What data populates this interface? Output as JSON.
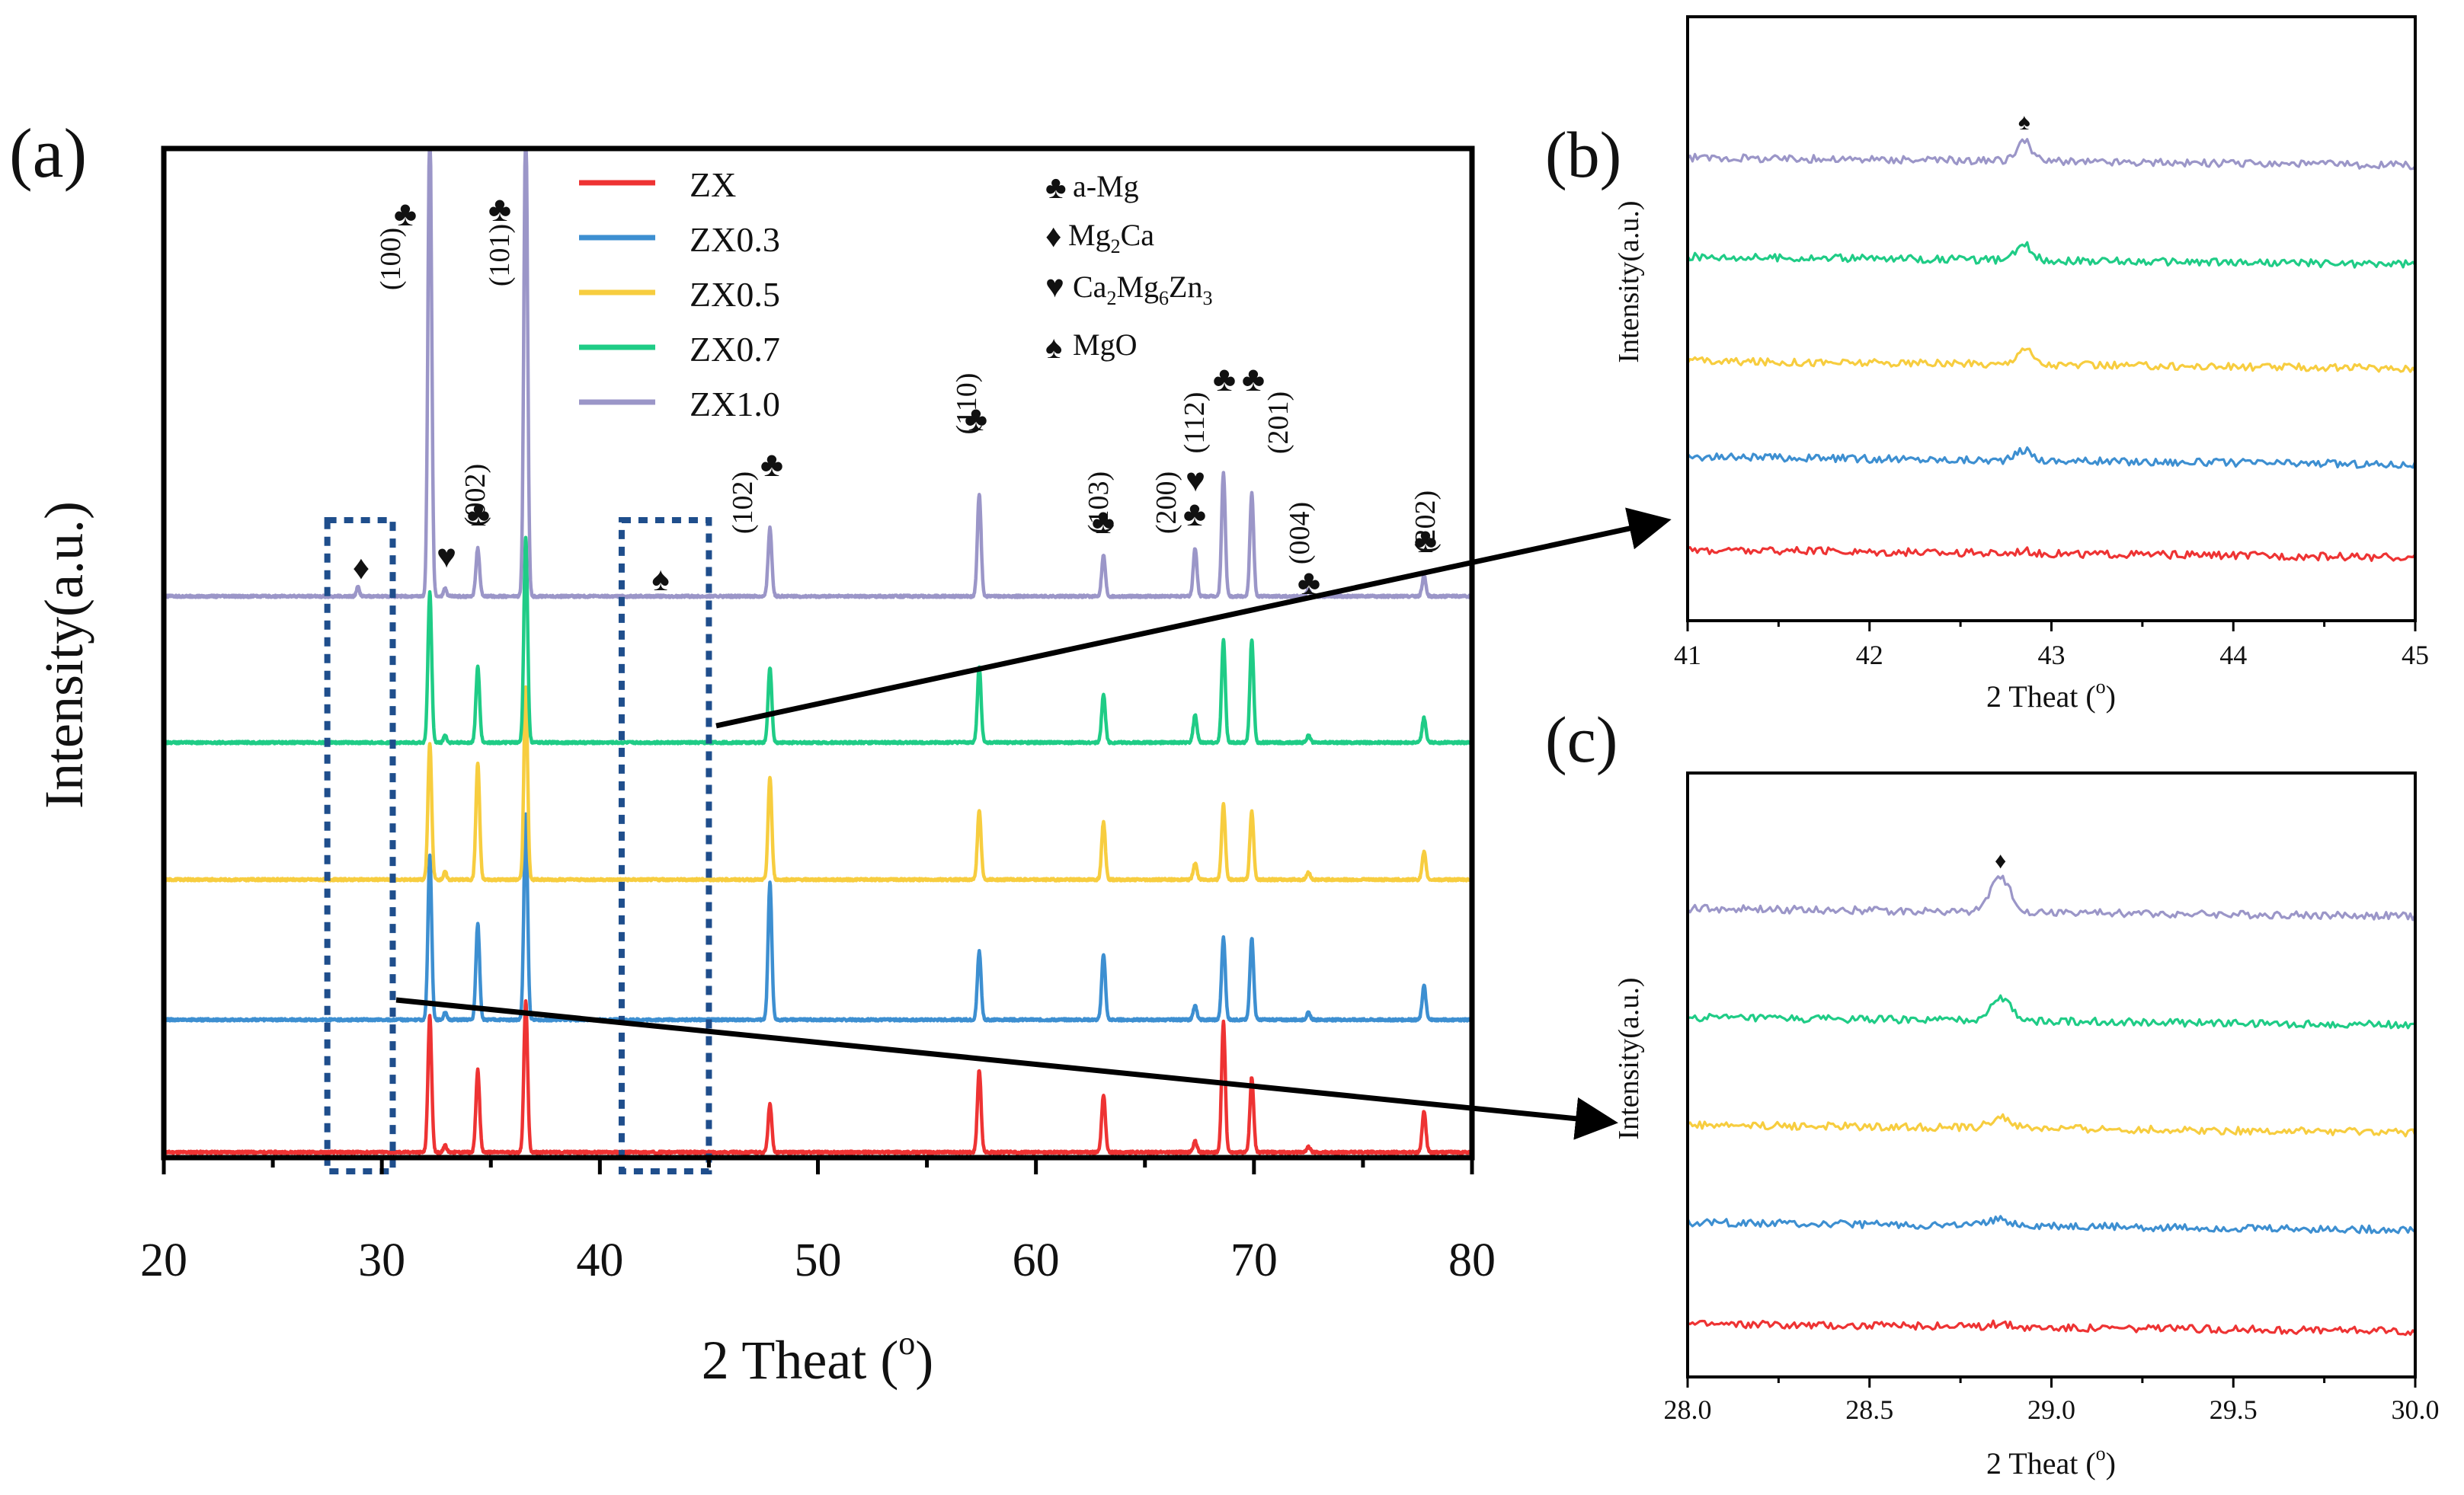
{
  "colors": {
    "ZX": "#ee3333",
    "ZX0.3": "#3d8fd1",
    "ZX0.5": "#f7cd3f",
    "ZX0.7": "#1fcc86",
    "ZX1.0": "#9b96c8",
    "zoom_box": "#1f4e8c"
  },
  "chart_data": [
    {
      "panel": "(a)",
      "type": "line",
      "xlabel": "2 Theat (",
      "xlabel_sup": "o",
      "xlabel_end": ")",
      "ylabel": "Intensity(a.u.)",
      "xlim": [
        20,
        80
      ],
      "xticks": [
        "20",
        "30",
        "40",
        "50",
        "60",
        "70",
        "80"
      ],
      "legend": [
        "ZX",
        "ZX0.3",
        "ZX0.5",
        "ZX0.7",
        "ZX1.0"
      ],
      "phase_legend": [
        {
          "symbol": "♣",
          "label": "a-Mg"
        },
        {
          "symbol": "♦",
          "label": "Mg2Ca"
        },
        {
          "symbol": "♥",
          "label": "Ca2Mg6Zn3"
        },
        {
          "symbol": "♠",
          "label": "MgO"
        }
      ],
      "peaks": [
        {
          "pos": 32.2,
          "hkl": "(100)",
          "symbol": "♣"
        },
        {
          "pos": 34.4,
          "hkl": "(002)",
          "symbol": "♣"
        },
        {
          "pos": 36.6,
          "hkl": "(101)",
          "symbol": "♣"
        },
        {
          "pos": 47.8,
          "hkl": "(102)",
          "symbol": "♣"
        },
        {
          "pos": 57.4,
          "hkl": "(110)",
          "symbol": "♣"
        },
        {
          "pos": 63.1,
          "hkl": "(103)",
          "symbol": "♣"
        },
        {
          "pos": 67.3,
          "hkl": "(200)",
          "symbol": "♣"
        },
        {
          "pos": 68.6,
          "hkl": "(112)",
          "symbol": "♣"
        },
        {
          "pos": 69.9,
          "hkl": "(201)",
          "symbol": "♣"
        },
        {
          "pos": 72.5,
          "hkl": "(004)",
          "symbol": "♣"
        },
        {
          "pos": 77.8,
          "hkl": "(202)",
          "symbol": "♣"
        }
      ],
      "minor_phase_marks": [
        {
          "pos": 28.9,
          "symbol": "♦"
        },
        {
          "pos": 32.9,
          "symbol": "♥"
        },
        {
          "pos": 67.2,
          "symbol": "♥"
        },
        {
          "pos": 42.9,
          "symbol": "♠"
        }
      ],
      "zoom_ranges": [
        [
          27.5,
          30.5
        ],
        [
          41,
          45
        ]
      ],
      "series": [
        {
          "name": "ZX",
          "offset": 0
        },
        {
          "name": "ZX0.3",
          "offset": 1
        },
        {
          "name": "ZX0.5",
          "offset": 2
        },
        {
          "name": "ZX0.7",
          "offset": 3
        },
        {
          "name": "ZX1.0",
          "offset": 4
        }
      ]
    },
    {
      "panel": "(b)",
      "type": "line",
      "xlabel": "2 Theat (",
      "xlabel_sup": "o",
      "xlabel_end": ")",
      "ylabel": "Intensity(a.u.)",
      "xlim": [
        41,
        45
      ],
      "xticks": [
        "41",
        "42",
        "43",
        "44",
        "45"
      ],
      "peak": {
        "pos": 42.85,
        "symbol": "♠"
      },
      "series": [
        "ZX",
        "ZX0.3",
        "ZX0.5",
        "ZX0.7",
        "ZX1.0"
      ]
    },
    {
      "panel": "(c)",
      "type": "line",
      "xlabel": "2 Theat (",
      "xlabel_sup": "o",
      "xlabel_end": ")",
      "ylabel": "Intensity(a.u.)",
      "xlim": [
        28.0,
        30.0
      ],
      "xticks": [
        "28.0",
        "28.5",
        "29.0",
        "29.5",
        "30.0"
      ],
      "peak": {
        "pos": 28.86,
        "symbol": "♦"
      },
      "series": [
        "ZX",
        "ZX0.3",
        "ZX0.5",
        "ZX0.7",
        "ZX1.0"
      ]
    }
  ]
}
